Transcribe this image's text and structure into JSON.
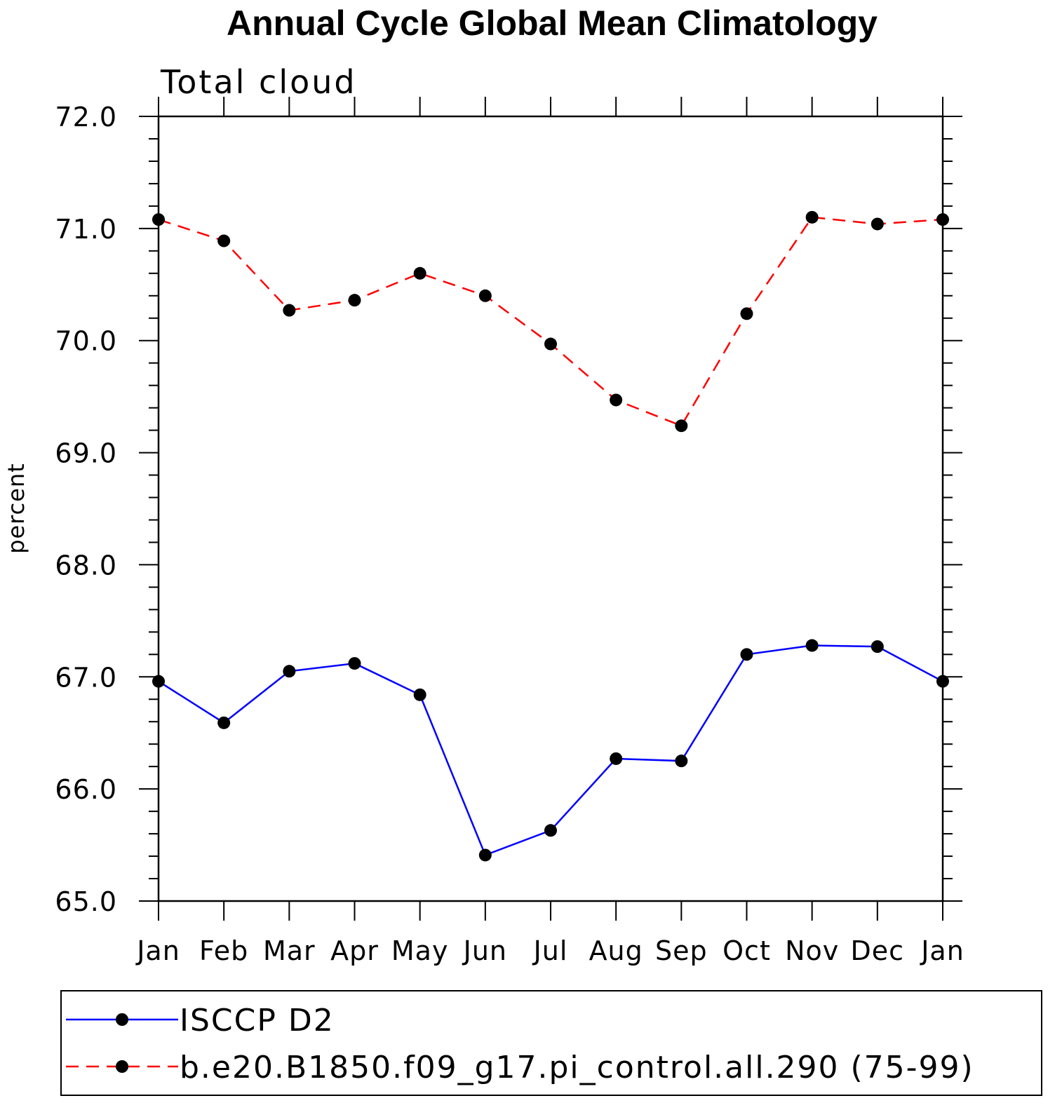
{
  "chart_data": {
    "type": "line",
    "title": "Annual Cycle Global Mean Climatology",
    "subtitle": "Total cloud",
    "xlabel": "",
    "ylabel": "percent",
    "categories": [
      "Jan",
      "Feb",
      "Mar",
      "Apr",
      "May",
      "Jun",
      "Jul",
      "Aug",
      "Sep",
      "Oct",
      "Nov",
      "Dec",
      "Jan"
    ],
    "ylim": [
      65.0,
      72.0
    ],
    "yticks": [
      "65.0",
      "66.0",
      "67.0",
      "68.0",
      "69.0",
      "70.0",
      "71.0",
      "72.0"
    ],
    "legend_position": "bottom",
    "series": [
      {
        "name": "ISCCP D2",
        "color": "#0000ff",
        "line_style": "solid",
        "marker": "filled-circle",
        "values": [
          66.96,
          66.59,
          67.05,
          67.12,
          66.84,
          65.41,
          65.63,
          66.27,
          66.25,
          67.2,
          67.28,
          67.27,
          66.96
        ]
      },
      {
        "name": "b.e20.B1850.f09_g17.pi_control.all.290 (75-99)",
        "color": "#ff0000",
        "line_style": "dashed",
        "marker": "filled-circle",
        "values": [
          71.08,
          70.89,
          70.27,
          70.36,
          70.6,
          70.4,
          69.97,
          69.47,
          69.24,
          70.24,
          71.1,
          71.04,
          71.08
        ]
      }
    ]
  }
}
